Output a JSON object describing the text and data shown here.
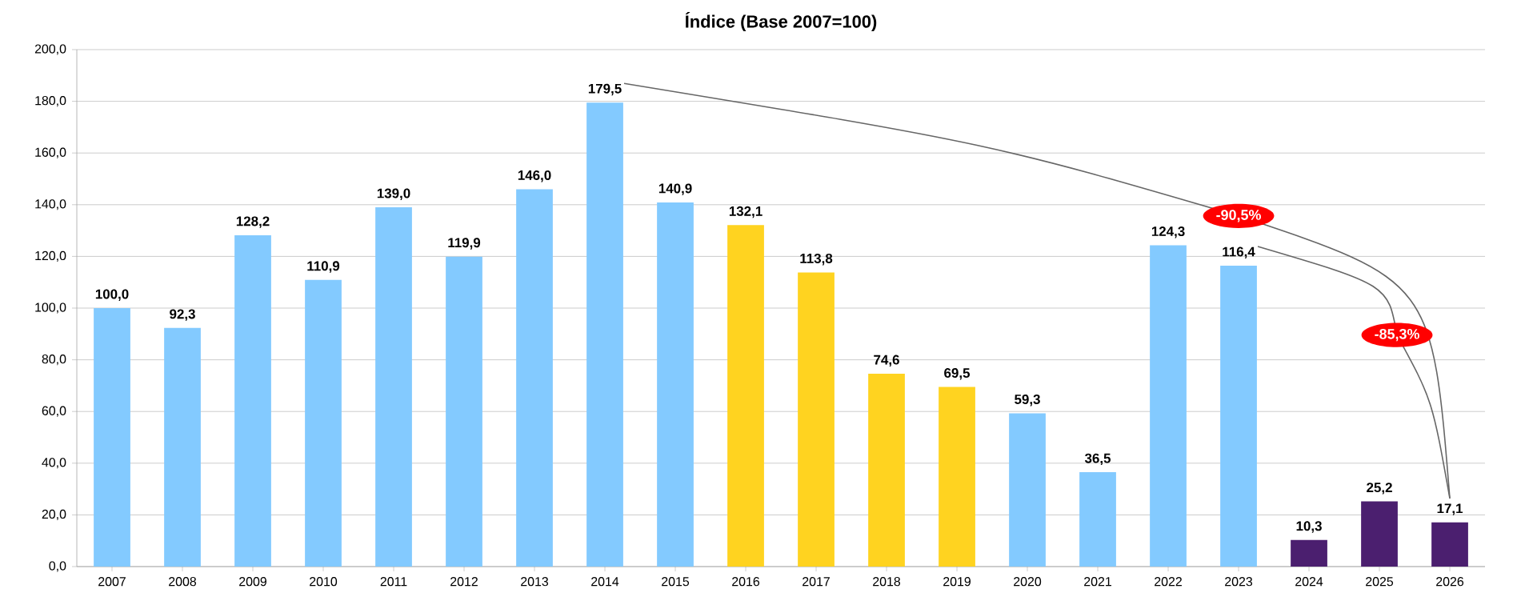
{
  "chart_data": {
    "type": "bar",
    "title": "Índice (Base 2007=100)",
    "categories": [
      "2007",
      "2008",
      "2009",
      "2010",
      "2011",
      "2012",
      "2013",
      "2014",
      "2015",
      "2016",
      "2017",
      "2018",
      "2019",
      "2020",
      "2021",
      "2022",
      "2023",
      "2024",
      "2025",
      "2026"
    ],
    "values": [
      100.0,
      92.3,
      128.2,
      110.9,
      139.0,
      119.9,
      146.0,
      179.5,
      140.9,
      132.1,
      113.8,
      74.6,
      69.5,
      59.3,
      36.5,
      124.3,
      116.4,
      10.3,
      25.2,
      17.1
    ],
    "colors": [
      "#83caff",
      "#83caff",
      "#83caff",
      "#83caff",
      "#83caff",
      "#83caff",
      "#83caff",
      "#83caff",
      "#83caff",
      "#ffd320",
      "#ffd320",
      "#ffd320",
      "#ffd320",
      "#83caff",
      "#83caff",
      "#83caff",
      "#83caff",
      "#4b1f6f",
      "#4b1f6f",
      "#4b1f6f"
    ],
    "ylim": [
      0,
      200
    ],
    "yticks": [
      {
        "value": 0,
        "label": "0,0"
      },
      {
        "value": 20,
        "label": "20,0"
      },
      {
        "value": 40,
        "label": "40,0"
      },
      {
        "value": 60,
        "label": "60,0"
      },
      {
        "value": 80,
        "label": "80,0"
      },
      {
        "value": 100,
        "label": "100,0"
      },
      {
        "value": 120,
        "label": "120,0"
      },
      {
        "value": 140,
        "label": "140,0"
      },
      {
        "value": 160,
        "label": "160,0"
      },
      {
        "value": 180,
        "label": "180,0"
      },
      {
        "value": 200,
        "label": "200,0"
      }
    ],
    "value_labels": [
      "100,0",
      "92,3",
      "128,2",
      "110,9",
      "139,0",
      "119,9",
      "146,0",
      "179,5",
      "140,9",
      "132,1",
      "113,8",
      "74,6",
      "69,5",
      "59,3",
      "36,5",
      "124,3",
      "116,4",
      "10,3",
      "25,2",
      "17,1"
    ],
    "grid": "y",
    "annotations": [
      "-90,5%",
      "-85,3%"
    ]
  }
}
